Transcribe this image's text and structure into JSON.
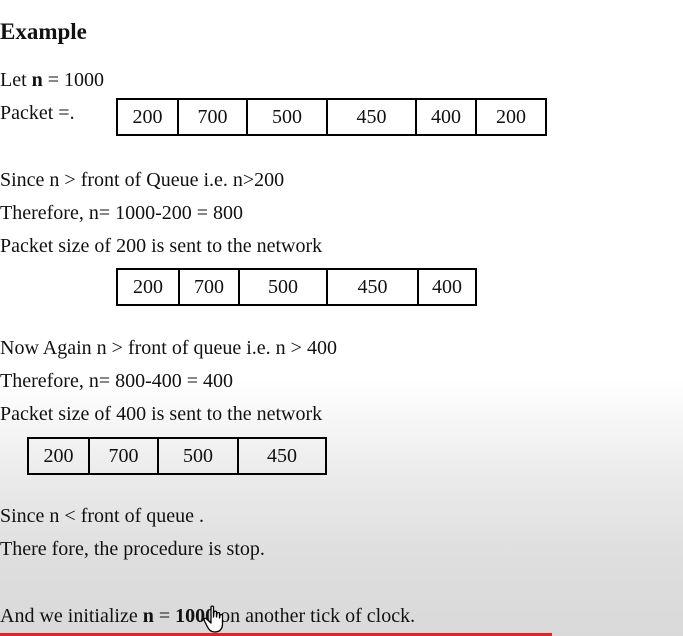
{
  "heading": "Example",
  "let_prefix": "Let ",
  "let_var": "n",
  "let_suffix": " = 1000",
  "packet_label": "Packet  =.",
  "queue1": [
    "200",
    "700",
    "500",
    "450",
    "400",
    "200"
  ],
  "step1": {
    "line1": "Since n > front of Queue i.e. n>200",
    "line2": "Therefore, n= 1000-200 = 800",
    "line3": "Packet size of 200 is sent to the network"
  },
  "queue2": [
    "200",
    "700",
    "500",
    "450",
    "400"
  ],
  "step2": {
    "line1": "Now Again n > front of queue i.e. n > 400",
    "line2": "Therefore, n= 800-400 = 400",
    "line3": "Packet size of 400 is sent to the network"
  },
  "queue3": [
    "200",
    "700",
    "500",
    "450"
  ],
  "step3": {
    "line1": "Since n < front of queue .",
    "line2": "There fore, the procedure is stop."
  },
  "final": {
    "prefix": "And we initialize ",
    "var": "n",
    "eq": " = ",
    "value": "1000",
    "suffix": " on another tick of clock."
  },
  "icons": {
    "cursor": "hand-pointer-icon"
  }
}
